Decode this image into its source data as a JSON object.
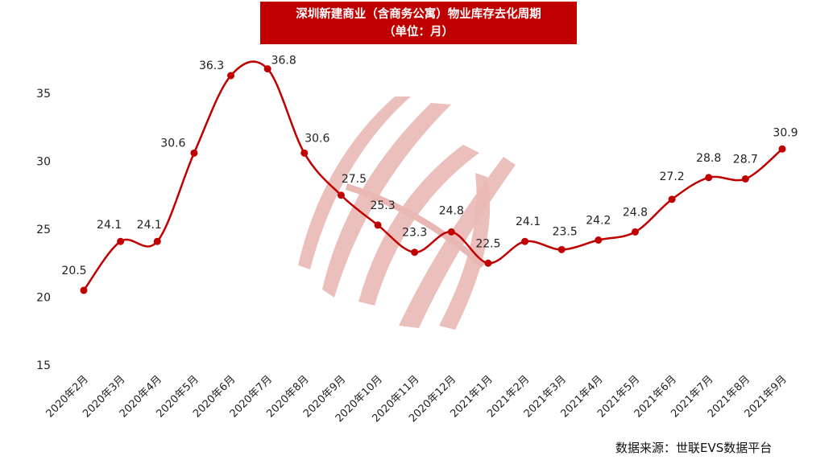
{
  "title": "深圳新建商业（含商务公寓）物业库存去化周期",
  "subtitle": "（单位：月）",
  "source": "数据来源：世联EVS数据平台",
  "colors": {
    "title_bg": "#c00000",
    "line": "#c00000",
    "watermark": "#e9b8b4"
  },
  "chart_data": {
    "type": "line",
    "title": "深圳新建商业（含商务公寓）物业库存去化周期",
    "subtitle": "（单位：月）",
    "xlabel": "",
    "ylabel": "",
    "ylim": [
      15,
      38
    ],
    "yticks": [
      15,
      20,
      25,
      30,
      35
    ],
    "grid": false,
    "smooth": true,
    "categories": [
      "2020年2月",
      "2020年3月",
      "2020年4月",
      "2020年5月",
      "2020年6月",
      "2020年7月",
      "2020年8月",
      "2020年9月",
      "2020年10月",
      "2020年11月",
      "2020年12月",
      "2021年1月",
      "2021年2月",
      "2021年3月",
      "2021年4月",
      "2021年5月",
      "2021年6月",
      "2021年7月",
      "2021年8月",
      "2021年9月"
    ],
    "series": [
      {
        "values": [
          20.5,
          24.1,
          24.1,
          30.6,
          36.3,
          36.8,
          30.6,
          27.5,
          25.3,
          23.3,
          24.8,
          22.5,
          24.1,
          23.5,
          24.2,
          24.8,
          27.2,
          28.8,
          28.7,
          30.9
        ]
      }
    ]
  }
}
